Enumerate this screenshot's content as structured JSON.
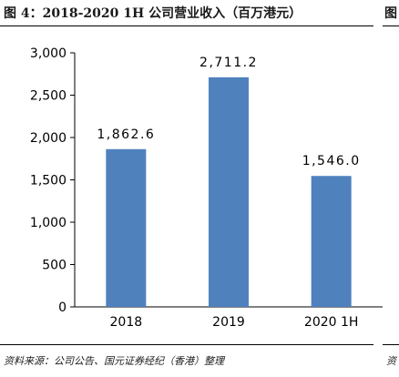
{
  "figure": {
    "title": "图 4：2018-2020 1H 公司营业收入（百万港元）",
    "title_right": "图",
    "source": "资料来源：公司公告、国元证券经纪（香港）整理",
    "source_right": "资"
  },
  "chart_data": {
    "type": "bar",
    "title": "图 4：2018-2020 1H 公司营业收入（百万港元）",
    "categories": [
      "2018",
      "2019",
      "2020 1H"
    ],
    "series": [
      {
        "values": [
          1862.6,
          2711.2,
          1546.0
        ]
      }
    ],
    "data_labels": [
      "1,862.6",
      "2,711.2",
      "1,546.0"
    ],
    "yticks": [
      "0",
      "500",
      "1,000",
      "1,500",
      "2,000",
      "2,500",
      "3,000"
    ],
    "ylim": [
      0,
      3000
    ],
    "xlabel": "",
    "ylabel": "",
    "grid": false,
    "legend": "none",
    "bar_color": "#4f81bd"
  }
}
